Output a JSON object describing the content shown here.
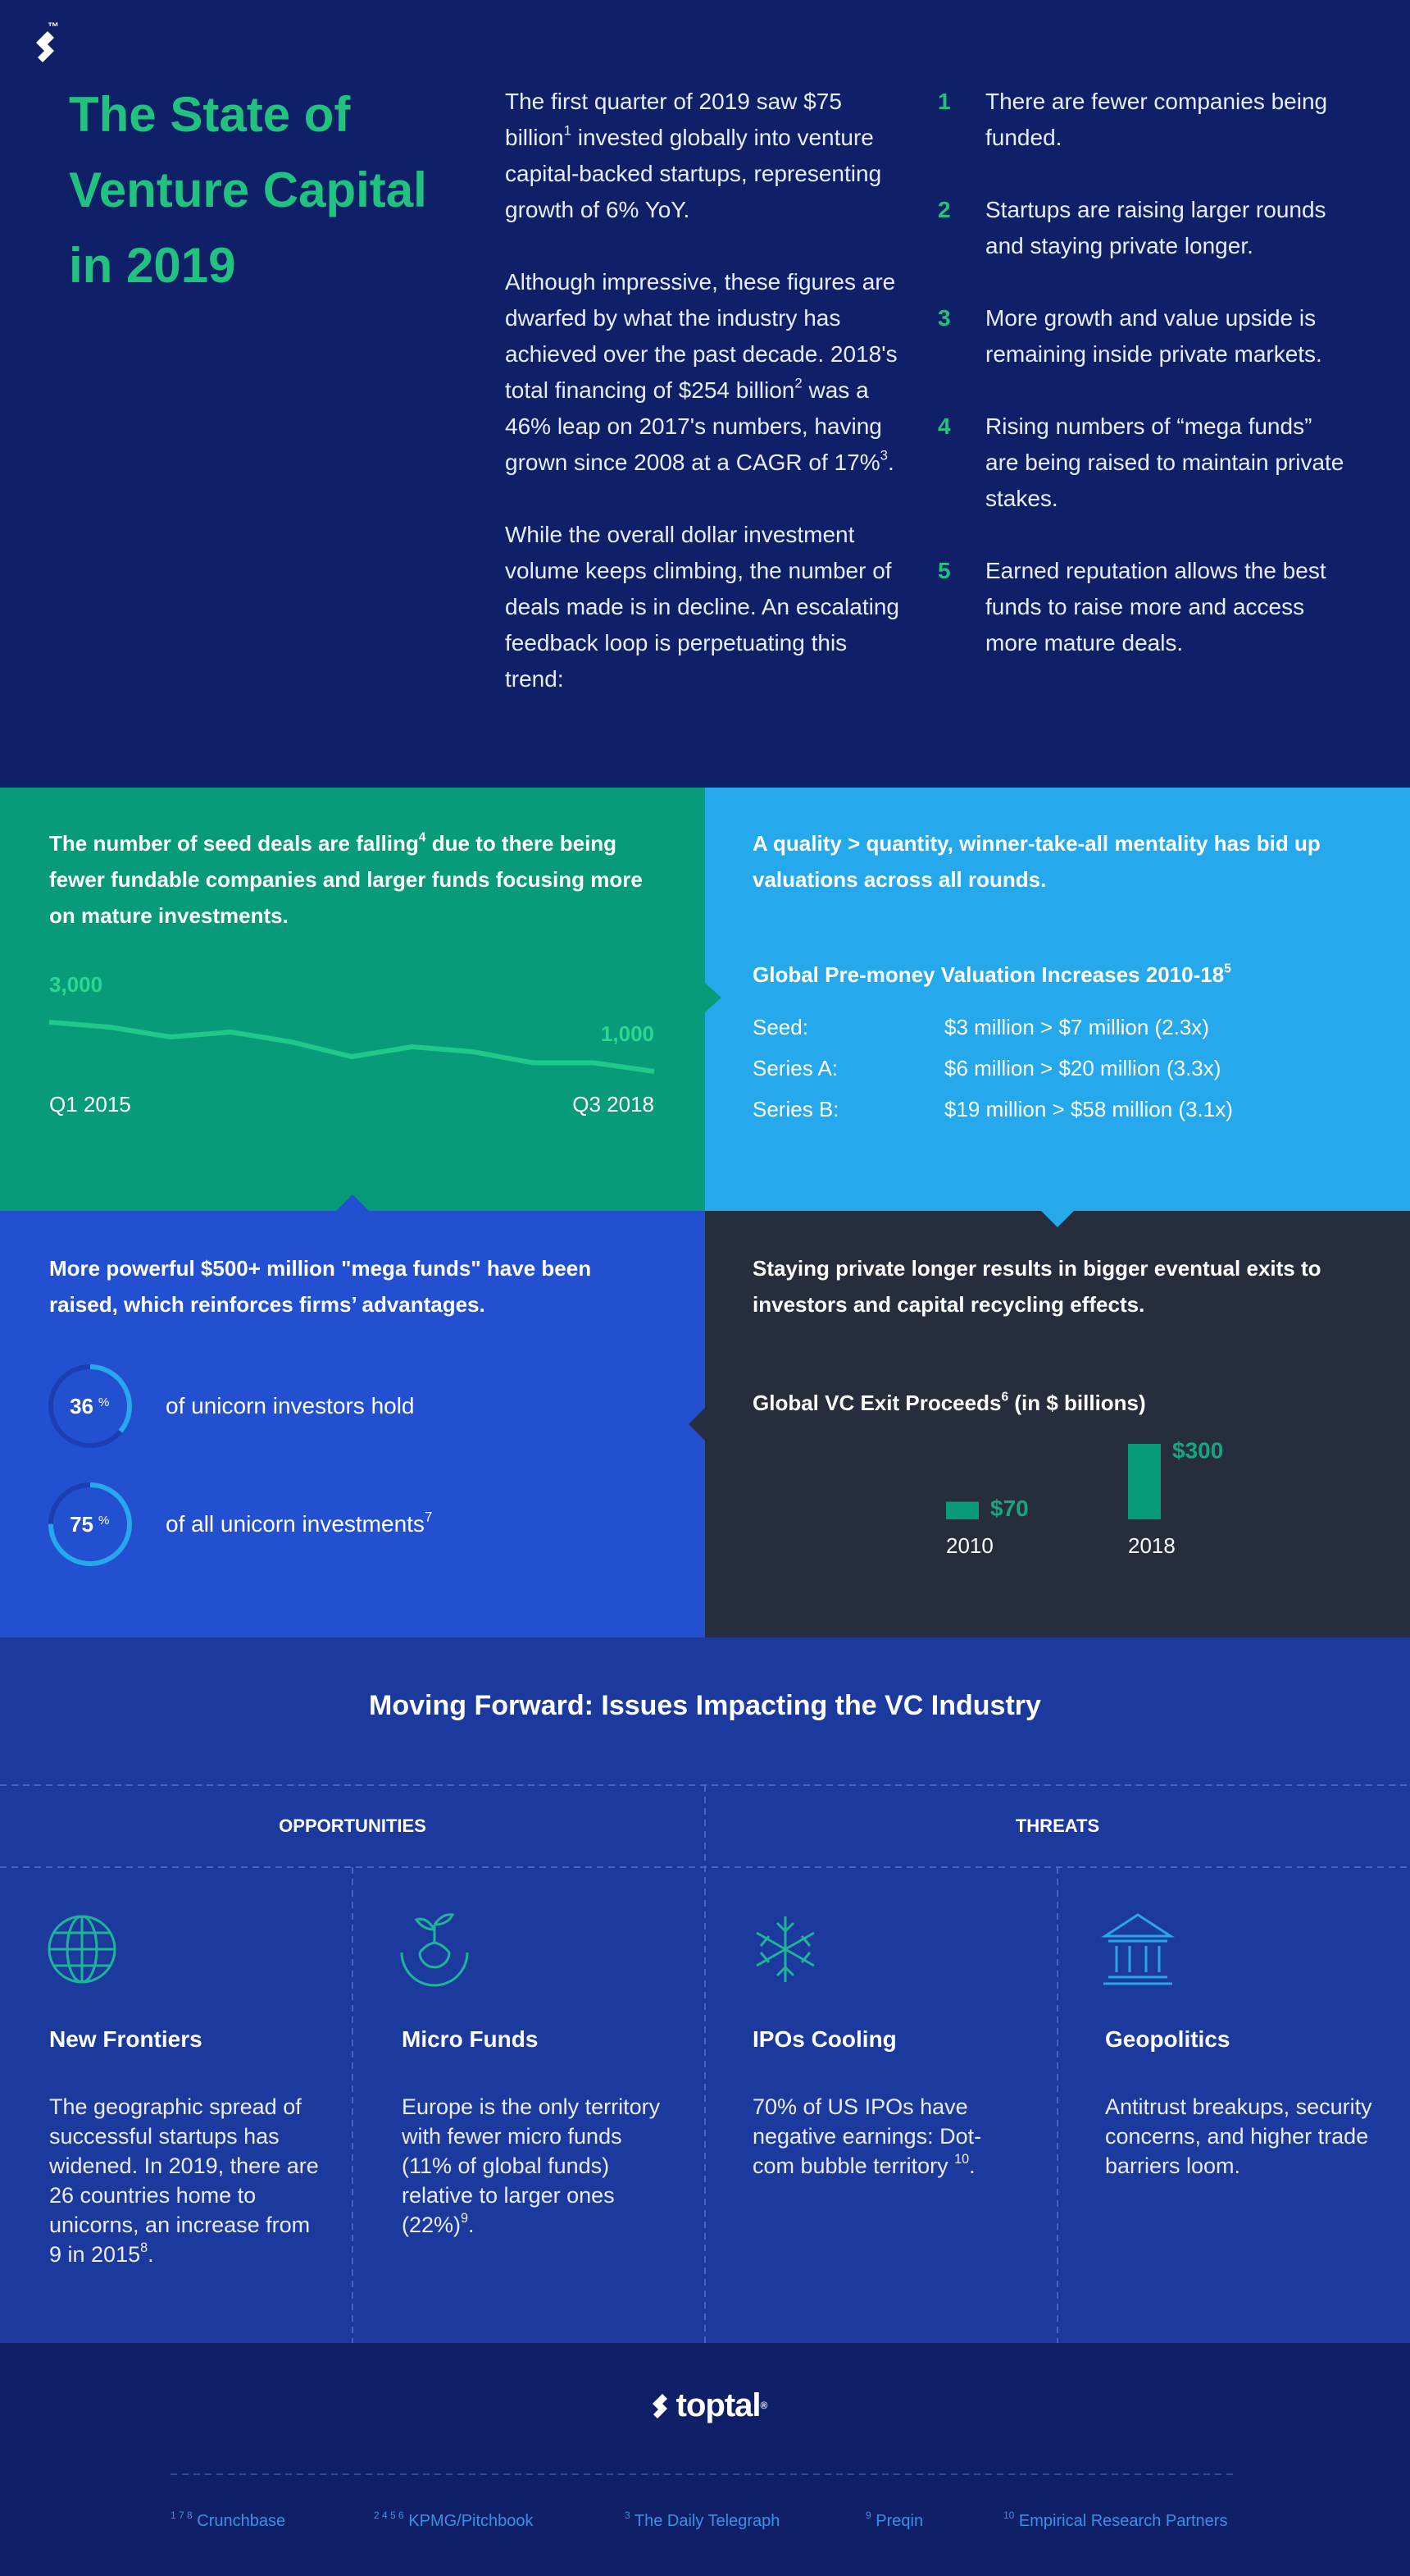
{
  "header": {
    "logo_mark": "™",
    "title": "The State of Venture Capital in 2019",
    "intro": [
      [
        "The first quarter of 2019 saw $75 billion",
        {
          "sup": "1"
        },
        " invested globally into venture capital-backed startups, representing growth of 6% YoY."
      ],
      [
        "Although impressive, these figures are dwarfed by what the industry has achieved over the past decade. 2018's total financing of $254 billion",
        {
          "sup": "2"
        },
        " was a 46% leap on 2017's numbers, having grown since 2008 at a CAGR of 17%",
        {
          "sup": "3"
        },
        "."
      ],
      [
        "While the overall dollar investment volume keeps climbing, the number of deals made is in decline. An escalating feedback loop is perpetuating this trend:"
      ]
    ],
    "list": [
      {
        "number": "1",
        "text": "There are fewer companies being funded."
      },
      {
        "number": "2",
        "text": "Startups are raising larger rounds and staying private longer."
      },
      {
        "number": "3",
        "text": "More growth and value upside is remaining inside private markets."
      },
      {
        "number": "4",
        "text": "Rising numbers of “mega funds” are being raised to maintain private stakes."
      },
      {
        "number": "5",
        "text": "Earned reputation allows the best funds to raise more and access more mature deals."
      }
    ]
  },
  "panels": {
    "seed": {
      "text": [
        "The number of seed deals are falling",
        {
          "sup": "4"
        },
        " due to there being fewer fundable companies and larger funds focusing more on mature investments."
      ],
      "chart": {
        "type": "line",
        "values": [
          3000,
          2800,
          2400,
          2600,
          2200,
          1600,
          2000,
          1800,
          1350,
          1350,
          1000
        ],
        "value_labels": [
          "3,000",
          null,
          null,
          null,
          null,
          null,
          null,
          null,
          null,
          null,
          "1,000"
        ],
        "x_labels": [
          "Q1 2015",
          "Q3 2018"
        ]
      }
    },
    "valuation": {
      "text": "A quality > quantity, winner-take-all mentality has bid up valuations across all rounds.",
      "heading": [
        "Global Pre-money Valuation Increases 2010-18",
        {
          "sup": "5"
        }
      ],
      "rows": [
        {
          "label": "Seed:",
          "value": "$3 million > $7 million (2.3x)"
        },
        {
          "label": "Series A:",
          "value": "$6 million > $20 million (3.3x)"
        },
        {
          "label": "Series B:",
          "value": "$19 million > $58 million (3.1x)"
        }
      ]
    },
    "mega_funds": {
      "text": "More powerful $500+ million \"mega funds\" have been raised, which reinforces firms’ advantages.",
      "chart": {
        "type": "donut",
        "unit": "%",
        "values": [
          36,
          75
        ],
        "labels": [
          [
            "of unicorn investors hold"
          ],
          [
            "of all unicorn investments",
            {
              "sup": "7"
            }
          ]
        ]
      }
    },
    "exits": {
      "text": "Staying private longer results in bigger eventual exits to investors and capital recycling effects.",
      "chart": {
        "type": "bar",
        "title": [
          "Global VC Exit Proceeds",
          {
            "sup": "6"
          },
          " (in $ billions)"
        ],
        "categories": [
          "2010",
          "2018"
        ],
        "values": [
          70,
          300
        ],
        "value_labels": [
          "$70",
          "$300"
        ]
      }
    }
  },
  "moving_forward": {
    "title": "Moving Forward: Issues Impacting the VC Industry",
    "groups": [
      "OPPORTUNITIES",
      "THREATS"
    ],
    "cards": [
      {
        "title": "New Frontiers",
        "body": [
          "The geographic spread of successful startups has widened. In 2019, there are 26 countries home to unicorns, an increase from 9 in 2015",
          {
            "sup": "8"
          },
          "."
        ]
      },
      {
        "title": "Micro Funds",
        "body": [
          "Europe is the only territory with fewer micro funds (11% of global funds) relative to larger ones (22%)",
          {
            "sup": "9"
          },
          "."
        ]
      },
      {
        "title": "IPOs Cooling",
        "body": [
          "70% of US IPOs have negative earnings: Dot-com bubble territory ",
          {
            "sup": "10"
          },
          "."
        ]
      },
      {
        "title": "Geopolitics",
        "body": [
          "Antitrust breakups, security concerns, and higher trade barriers loom."
        ]
      }
    ]
  },
  "footer": {
    "logo": "toptal",
    "logo_mark": "®",
    "sources": [
      {
        "sup": "1 7 8",
        "name": "Crunchbase"
      },
      {
        "sup": "2 4 5 6",
        "name": "KPMG/Pitchbook"
      },
      {
        "sup": "3",
        "name": "The Daily Telegraph"
      },
      {
        "sup": "9",
        "name": "Preqin"
      },
      {
        "sup": "10",
        "name": "Empirical Research Partners"
      }
    ]
  }
}
